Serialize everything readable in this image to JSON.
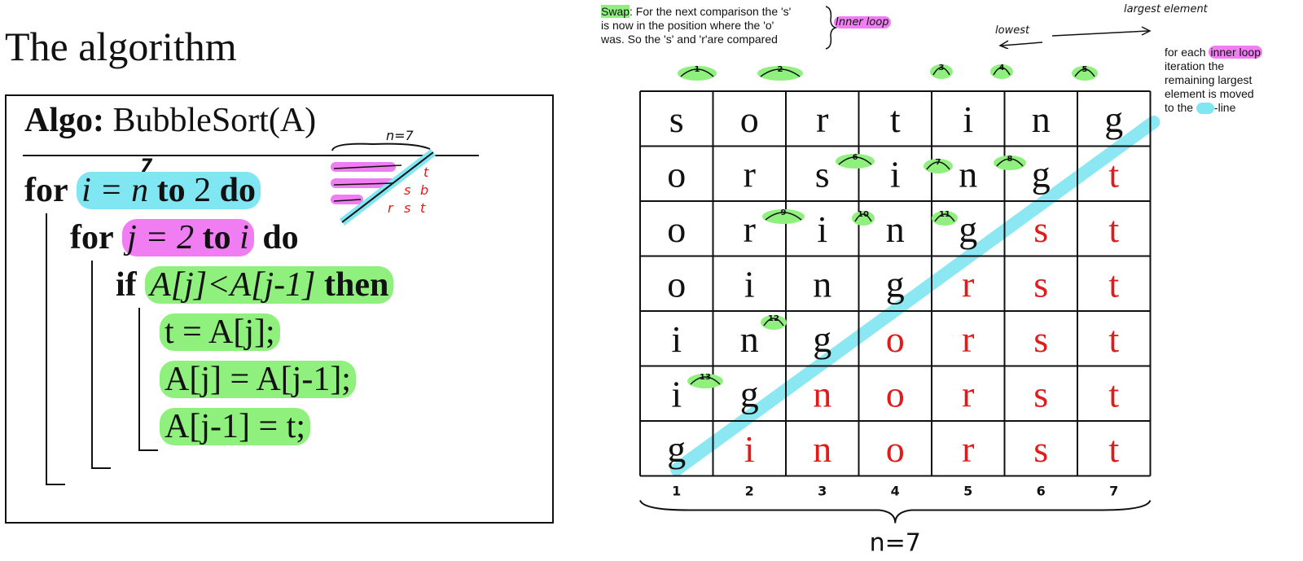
{
  "title": "The algorithm",
  "algo": {
    "header_bold": "Algo:",
    "header_name": "BubbleSort(A)",
    "line1": {
      "for": "for",
      "var": "i = n",
      "to": "to",
      "val": "2",
      "do": "do",
      "annot": "7"
    },
    "line2": {
      "for": "for",
      "var": "j = 2",
      "to": "to",
      "val": "i",
      "do": "do"
    },
    "line3": {
      "if": "if",
      "cond": "A[j]<A[j-1]",
      "then": "then"
    },
    "line4": "t = A[j];",
    "line5": "A[j] = A[j-1];",
    "line6": "A[j-1] = t;",
    "mini_n": "n=7",
    "mini_letters": [
      "t",
      "s",
      "b",
      "r",
      "s",
      "t"
    ]
  },
  "notes": {
    "swap_label": "Swap",
    "swap_text_1": ": For the next comparison the 's'",
    "swap_text_2": "is now in the position where the 'o'",
    "swap_text_3": "was. So the 's' and 'r'are compared",
    "inner_loop_tag": "Inner loop",
    "lowest": "lowest",
    "largest": "largest element",
    "side_1": "for each",
    "side_hl": "inner loop",
    "side_2": "iteration the",
    "side_3": "remaining largest",
    "side_4": "element is moved",
    "side_5a": "to the",
    "side_5b": "-line"
  },
  "grid": {
    "rows": [
      [
        "s",
        "o",
        "r",
        "t",
        "i",
        "n",
        "g"
      ],
      [
        "o",
        "r",
        "s",
        "i",
        "n",
        "g",
        "t"
      ],
      [
        "o",
        "r",
        "i",
        "n",
        "g",
        "s",
        "t"
      ],
      [
        "o",
        "i",
        "n",
        "g",
        "r",
        "s",
        "t"
      ],
      [
        "i",
        "n",
        "g",
        "o",
        "r",
        "s",
        "t"
      ],
      [
        "i",
        "g",
        "n",
        "o",
        "r",
        "s",
        "t"
      ],
      [
        "g",
        "i",
        "n",
        "o",
        "r",
        "s",
        "t"
      ]
    ],
    "sorted_from_col": [
      7,
      6,
      5,
      4,
      3,
      2,
      1
    ],
    "column_numbers": [
      "1",
      "2",
      "3",
      "4",
      "5",
      "6",
      "7"
    ],
    "bottom_label": "n=7",
    "swap_numbers": [
      "1",
      "2",
      "3",
      "4",
      "5",
      "6",
      "7",
      "8",
      "9",
      "10",
      "11",
      "12",
      "13"
    ]
  },
  "colors": {
    "cyan": "#7fe6f2",
    "pink": "#f07ef2",
    "green": "#8ff07e",
    "sorted_red": "#e01b1b",
    "ink": "#111111"
  }
}
